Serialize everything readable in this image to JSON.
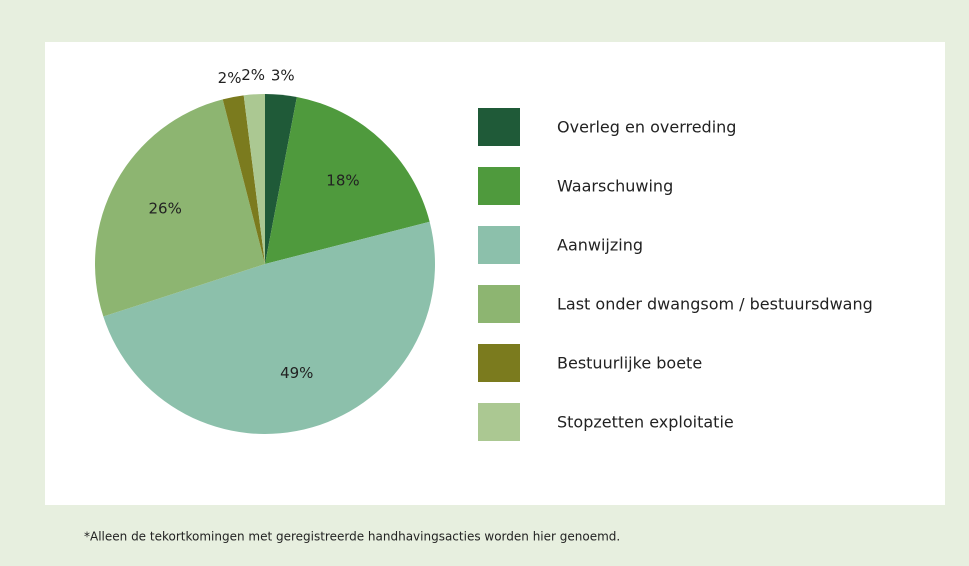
{
  "chart_data": {
    "type": "pie",
    "categories": [
      "Overleg en overreding",
      "Waarschuwing",
      "Aanwijzing",
      "Last onder dwangsom / bestuursdwang",
      "Bestuurlijke boete",
      "Stopzetten exploitatie"
    ],
    "values": [
      3,
      18,
      49,
      26,
      2,
      2
    ],
    "value_labels": [
      "3%",
      "18%",
      "49%",
      "26%",
      "2%",
      "2%"
    ],
    "colors": [
      "#1f5a38",
      "#4f9a3d",
      "#8cc0ab",
      "#8db571",
      "#7b7b1e",
      "#abc892"
    ],
    "footnote": "*Alleen de tekortkomingen met geregistreerde handhavingsacties worden hier genoemd."
  }
}
